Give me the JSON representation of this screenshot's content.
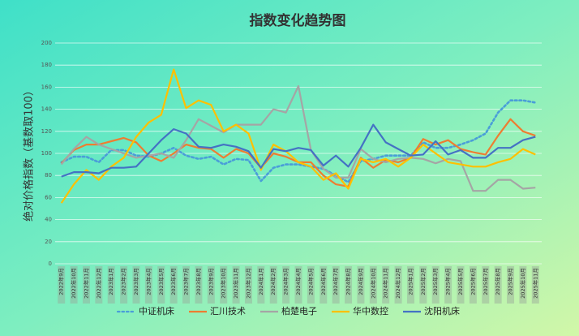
{
  "chart_data": {
    "type": "line",
    "title": "指数变化趋势图",
    "y_label": "绝对价格指数（基数取100）",
    "categories": [
      "2022年9月",
      "2022年10月",
      "2022年11月",
      "2022年12月",
      "2023年1月",
      "2023年2月",
      "2023年3月",
      "2023年4月",
      "2023年5月",
      "2023年6月",
      "2023年7月",
      "2023年8月",
      "2023年9月",
      "2023年10月",
      "2023年11月",
      "2023年12月",
      "2024年1月",
      "2024年2月",
      "2024年3月",
      "2024年4月",
      "2024年5月",
      "2024年6月",
      "2024年7月",
      "2024年8月",
      "2024年9月",
      "2024年10月",
      "2024年11月",
      "2024年12月",
      "2025年1月",
      "2025年2月",
      "2025年3月",
      "2025年4月",
      "2025年5月",
      "2025年6月",
      "2025年7月",
      "2025年8月",
      "2025年9月",
      "2025年10月",
      "2025年11月"
    ],
    "series": [
      {
        "name": "中证机床",
        "color": "#4a9ed8",
        "dash": true,
        "values": [
          92,
          97,
          97,
          92,
          103,
          103,
          98,
          97,
          100,
          105,
          98,
          95,
          97,
          90,
          95,
          94,
          75,
          87,
          90,
          90,
          88,
          86,
          80,
          74,
          93,
          95,
          98,
          98,
          98,
          110,
          105,
          105,
          108,
          112,
          118,
          137,
          148,
          148,
          146
        ]
      },
      {
        "name": "汇川技术",
        "color": "#ed7d31",
        "values": [
          91,
          103,
          108,
          108,
          111,
          114,
          110,
          98,
          93,
          100,
          108,
          105,
          104,
          96,
          104,
          100,
          87,
          100,
          97,
          92,
          92,
          80,
          72,
          70,
          96,
          87,
          94,
          92,
          96,
          113,
          108,
          112,
          104,
          101,
          99,
          116,
          131,
          120,
          116
        ]
      },
      {
        "name": "柏楚电子",
        "color": "#a5a5a5",
        "values": [
          90,
          104,
          115,
          108,
          104,
          100,
          96,
          98,
          100,
          96,
          112,
          131,
          125,
          119,
          126,
          126,
          126,
          140,
          137,
          161,
          103,
          86,
          78,
          78,
          104,
          95,
          92,
          95,
          96,
          95,
          91,
          95,
          93,
          66,
          66,
          76,
          76,
          68,
          69
        ]
      },
      {
        "name": "华中数控",
        "color": "#ffc000",
        "values": [
          55,
          72,
          85,
          76,
          88,
          96,
          115,
          128,
          135,
          176,
          141,
          148,
          144,
          120,
          126,
          118,
          85,
          108,
          102,
          92,
          88,
          76,
          82,
          68,
          95,
          92,
          95,
          88,
          96,
          108,
          100,
          92,
          90,
          88,
          88,
          92,
          95,
          104,
          99
        ]
      },
      {
        "name": "沈阳机床",
        "color": "#4472c4",
        "values": [
          79,
          83,
          83,
          82,
          87,
          87,
          88,
          100,
          112,
          122,
          118,
          106,
          105,
          108,
          106,
          102,
          87,
          104,
          102,
          105,
          103,
          89,
          98,
          88,
          105,
          126,
          110,
          104,
          98,
          99,
          111,
          99,
          103,
          96,
          96,
          105,
          105,
          112,
          115
        ]
      }
    ],
    "ylim": [
      0,
      200
    ],
    "yticks": [
      0,
      20,
      40,
      60,
      80,
      100,
      120,
      140,
      160,
      180,
      200
    ],
    "grid": true
  }
}
